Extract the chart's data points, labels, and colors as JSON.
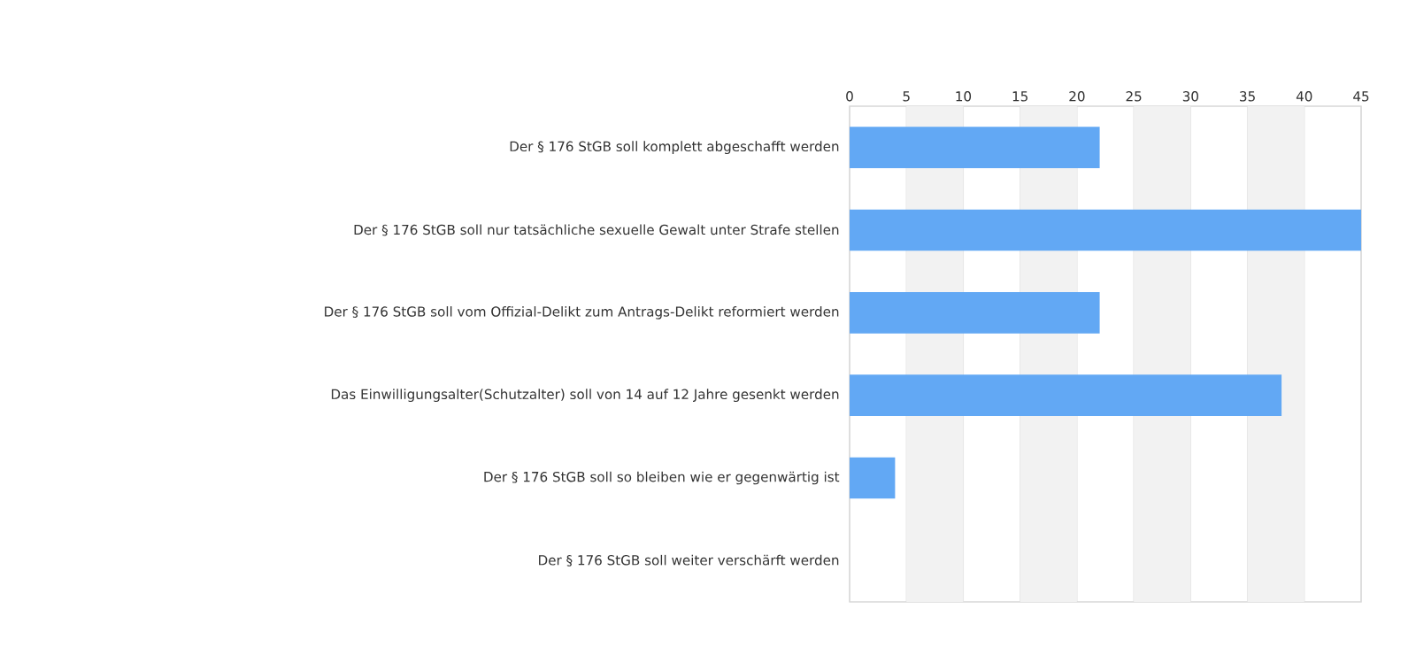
{
  "chart_data": {
    "type": "bar",
    "orientation": "horizontal",
    "categories": [
      "Der § 176 StGB soll komplett abgeschafft werden",
      "Der § 176 StGB soll nur tatsächliche sexuelle Gewalt unter Strafe stellen",
      "Der § 176 StGB soll vom Offizial-Delikt zum Antrags-Delikt reformiert werden",
      "Das Einwilligungsalter(Schutzalter) soll von 14 auf 12 Jahre gesenkt werden",
      "Der § 176 StGB soll so bleiben wie er gegenwärtig ist",
      "Der § 176 StGB soll weiter verschärft werden"
    ],
    "values": [
      22,
      45,
      22,
      38,
      4,
      0
    ],
    "color": "#62a8f4",
    "xlim": [
      0,
      45
    ],
    "xticks": [
      0,
      5,
      10,
      15,
      20,
      25,
      30,
      35,
      40,
      45
    ],
    "grid": "x",
    "bands": [
      {
        "axis": "x",
        "from": 5,
        "to": 10,
        "color": "#f2f2f2"
      },
      {
        "axis": "x",
        "from": 15,
        "to": 20,
        "color": "#f2f2f2"
      },
      {
        "axis": "x",
        "from": 25,
        "to": 30,
        "color": "#f2f2f2"
      },
      {
        "axis": "x",
        "from": 35,
        "to": 40,
        "color": "#f2f2f2"
      }
    ]
  }
}
